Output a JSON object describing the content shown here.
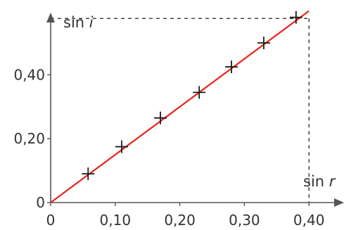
{
  "chart_data": {
    "type": "scatter",
    "title": "",
    "xlabel": {
      "text": "sin",
      "var": "r"
    },
    "ylabel": {
      "text": "sin",
      "var": "i"
    },
    "xlim": [
      0,
      0.4
    ],
    "ylim": [
      0,
      0.57
    ],
    "x_ticks": [
      {
        "value": 0,
        "label": "0"
      },
      {
        "value": 0.1,
        "label": "0,10"
      },
      {
        "value": 0.2,
        "label": "0,20"
      },
      {
        "value": 0.3,
        "label": "0,30"
      },
      {
        "value": 0.4,
        "label": "0,40"
      }
    ],
    "y_ticks": [
      {
        "value": 0,
        "label": "0"
      },
      {
        "value": 0.2,
        "label": "0,20"
      },
      {
        "value": 0.4,
        "label": "0,40"
      }
    ],
    "points": [
      {
        "x": 0.058,
        "y": 0.09
      },
      {
        "x": 0.11,
        "y": 0.175
      },
      {
        "x": 0.17,
        "y": 0.265
      },
      {
        "x": 0.23,
        "y": 0.345
      },
      {
        "x": 0.28,
        "y": 0.425
      },
      {
        "x": 0.33,
        "y": 0.5
      },
      {
        "x": 0.38,
        "y": 0.58
      }
    ],
    "fit_line": {
      "from": [
        0,
        0
      ],
      "to": [
        0.4,
        0.6
      ],
      "color": "#e8231a"
    },
    "marker_color": "#1a1a1a",
    "axis_color": "#555555",
    "guide_color": "#222222",
    "grid": false
  }
}
